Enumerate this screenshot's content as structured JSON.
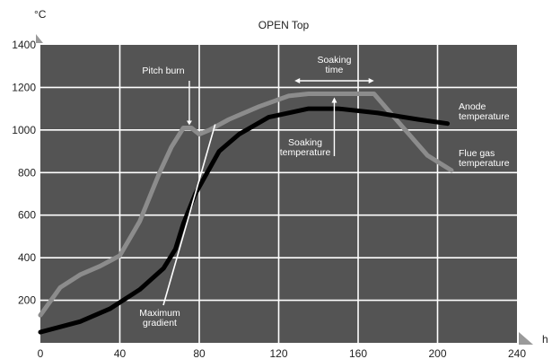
{
  "chart_data": {
    "type": "line",
    "title": "OPEN Top",
    "ylabel": "°C",
    "xlabel": "h",
    "xlim": [
      0,
      240
    ],
    "ylim": [
      0,
      1400
    ],
    "x_ticks": [
      0,
      40,
      80,
      120,
      160,
      200,
      240
    ],
    "y_ticks": [
      200,
      400,
      600,
      800,
      1000,
      1200,
      1400
    ],
    "grid": true,
    "colors": {
      "plot_background": "#545454",
      "grid": "#ffffff",
      "flue_gas": "#8c8c8c",
      "anode": "#000000"
    },
    "series": [
      {
        "name": "Flue gas temperature",
        "x": [
          0,
          10,
          20,
          30,
          40,
          50,
          60,
          66,
          72,
          76,
          80,
          85,
          95,
          110,
          125,
          135,
          150,
          168,
          180,
          195,
          207
        ],
        "y": [
          130,
          260,
          320,
          360,
          410,
          570,
          800,
          920,
          1010,
          1010,
          980,
          1000,
          1050,
          1110,
          1160,
          1170,
          1170,
          1170,
          1040,
          880,
          810
        ]
      },
      {
        "name": "Anode temperature",
        "x": [
          0,
          20,
          35,
          50,
          62,
          68,
          72,
          78,
          90,
          100,
          115,
          135,
          150,
          170,
          190,
          205
        ],
        "y": [
          50,
          100,
          160,
          250,
          350,
          440,
          560,
          700,
          900,
          980,
          1060,
          1100,
          1100,
          1080,
          1050,
          1030
        ]
      }
    ],
    "annotations": [
      {
        "id": "pitch_burn",
        "lines": [
          "Pitch burn"
        ],
        "x": 75,
        "y": 1010
      },
      {
        "id": "soaking_time",
        "lines": [
          "Soaking",
          "time"
        ],
        "x_from": 128,
        "x_to": 168,
        "y": 1230
      },
      {
        "id": "soaking_temperature",
        "lines": [
          "Soaking",
          "temperature"
        ],
        "x": 148,
        "y": 1170
      },
      {
        "id": "max_gradient",
        "lines": [
          "Maximum",
          "gradient"
        ],
        "x_from": 88,
        "y_from": 900,
        "x_to": 70,
        "y_to": 0
      },
      {
        "id": "anode_label",
        "lines": [
          "Anode",
          "temperature"
        ]
      },
      {
        "id": "flue_label",
        "lines": [
          "Flue gas",
          "temperature"
        ]
      }
    ]
  }
}
